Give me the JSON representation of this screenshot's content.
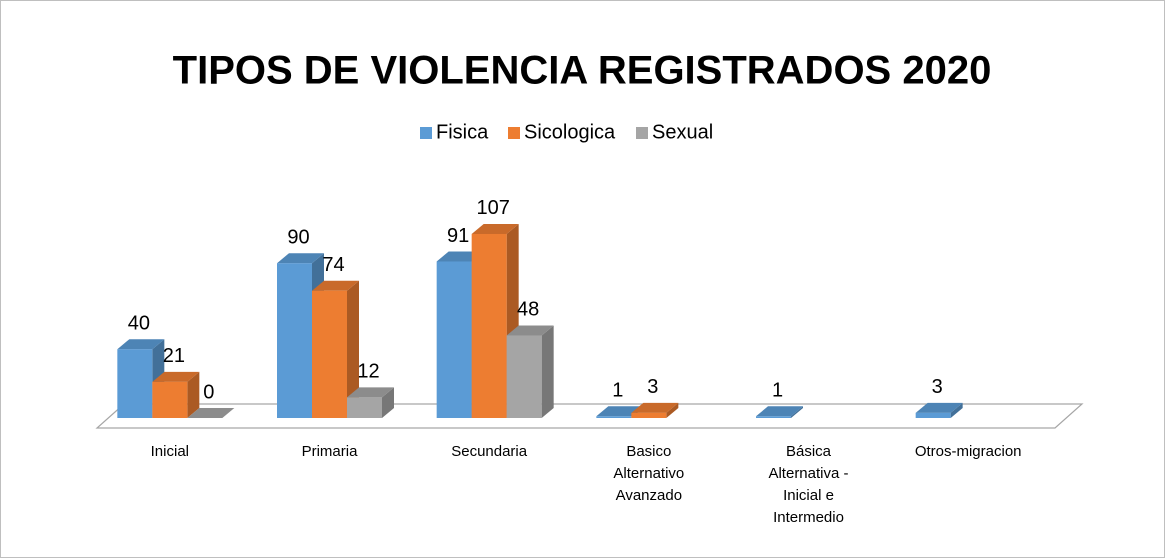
{
  "chart_data": {
    "type": "bar3d",
    "title": "TIPOS DE VIOLENCIA REGISTRADOS 2020",
    "categories": [
      "Inicial",
      "Primaria",
      "Secundaria",
      "Basico Alternativo Avanzado",
      "Básica Alternativa - Inicial e Intermedio",
      "Otros-migracion"
    ],
    "series": [
      {
        "name": "Fisica",
        "color": "#5b9bd5",
        "values": [
          40,
          90,
          91,
          1,
          1,
          3
        ]
      },
      {
        "name": "Sicologica",
        "color": "#ed7d31",
        "values": [
          21,
          74,
          107,
          3,
          null,
          null
        ]
      },
      {
        "name": "Sexual",
        "color": "#a5a5a5",
        "values": [
          0,
          12,
          48,
          null,
          null,
          null
        ]
      }
    ],
    "legend": "top"
  }
}
